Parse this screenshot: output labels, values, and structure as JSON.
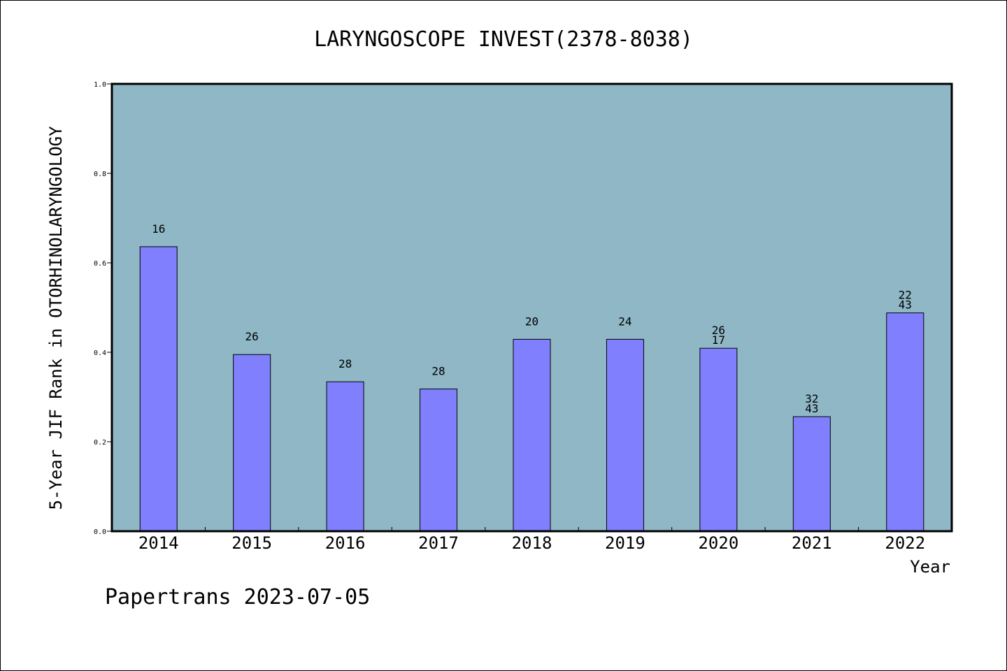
{
  "chart_data": {
    "type": "bar",
    "title": "LARYNGOSCOPE INVEST(2378-8038)",
    "xlabel": "Year",
    "ylabel": "5-Year JIF Rank in OTORHINOLARYNGOLOGY",
    "ylim": [
      0,
      1.0
    ],
    "yticks": [
      "0.0",
      "0.2",
      "0.4",
      "0.6",
      "0.8",
      "1.0"
    ],
    "categories": [
      "2014",
      "2015",
      "2016",
      "2017",
      "2018",
      "2019",
      "2020",
      "2021",
      "2022"
    ],
    "values": [
      0.636,
      0.395,
      0.334,
      0.318,
      0.429,
      0.429,
      0.409,
      0.256,
      0.488
    ],
    "bar_labels": [
      [
        "16"
      ],
      [
        "26"
      ],
      [
        "28"
      ],
      [
        "28"
      ],
      [
        "20"
      ],
      [
        "24"
      ],
      [
        "26",
        "17"
      ],
      [
        "32",
        "43"
      ],
      [
        "22",
        "43"
      ]
    ],
    "grid": false,
    "colors": {
      "plot_background": "#8fb7c6",
      "bar_fill": "#8080ff",
      "bar_stroke": "#000000"
    }
  },
  "footer": {
    "text": "Papertrans 2023-07-05"
  }
}
